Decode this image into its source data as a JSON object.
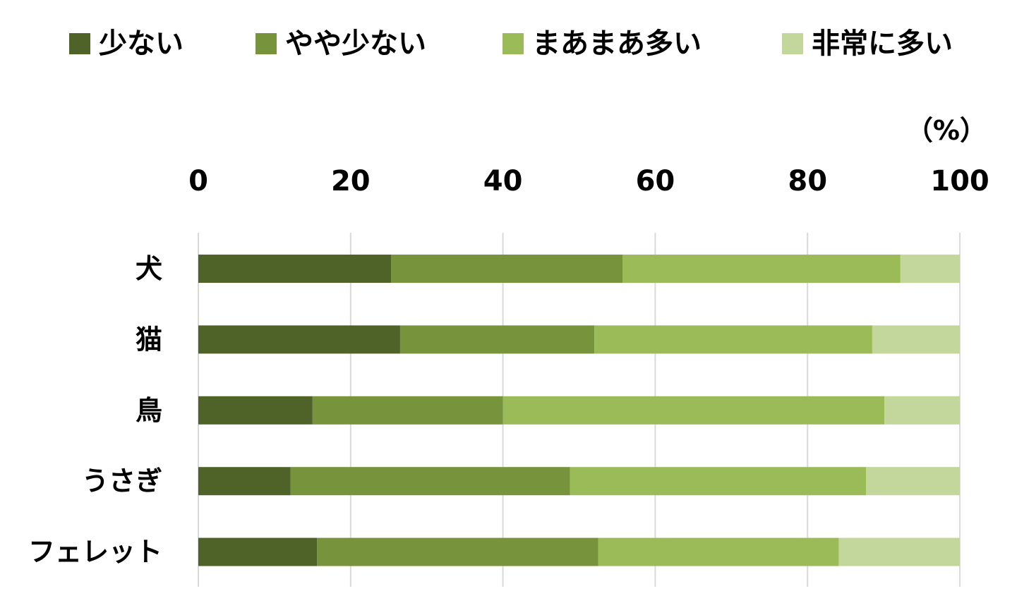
{
  "chart_data": {
    "type": "bar",
    "orientation": "horizontal",
    "stacked": true,
    "unit_label": "（%）",
    "xlim": [
      0,
      100
    ],
    "xticks": [
      "0",
      "20",
      "40",
      "60",
      "80",
      "100"
    ],
    "x_axis_position": "top",
    "grid": true,
    "legend_position": "top",
    "categories": [
      "犬",
      "猫",
      "鳥",
      "うさぎ",
      "フェレット"
    ],
    "series": [
      {
        "name": "少ない",
        "color": "#4f6228",
        "values": [
          25.3,
          26.5,
          15.0,
          12.1,
          15.6
        ]
      },
      {
        "name": "やや少ない",
        "color": "#77933c",
        "values": [
          30.4,
          25.5,
          25.0,
          36.7,
          36.9
        ]
      },
      {
        "name": "まあまあ多い",
        "color": "#9bbb59",
        "values": [
          36.5,
          36.5,
          50.1,
          38.9,
          31.6
        ]
      },
      {
        "name": "非常に多い",
        "color": "#c3d69b",
        "values": [
          7.8,
          11.5,
          9.9,
          12.3,
          15.9
        ]
      }
    ]
  }
}
